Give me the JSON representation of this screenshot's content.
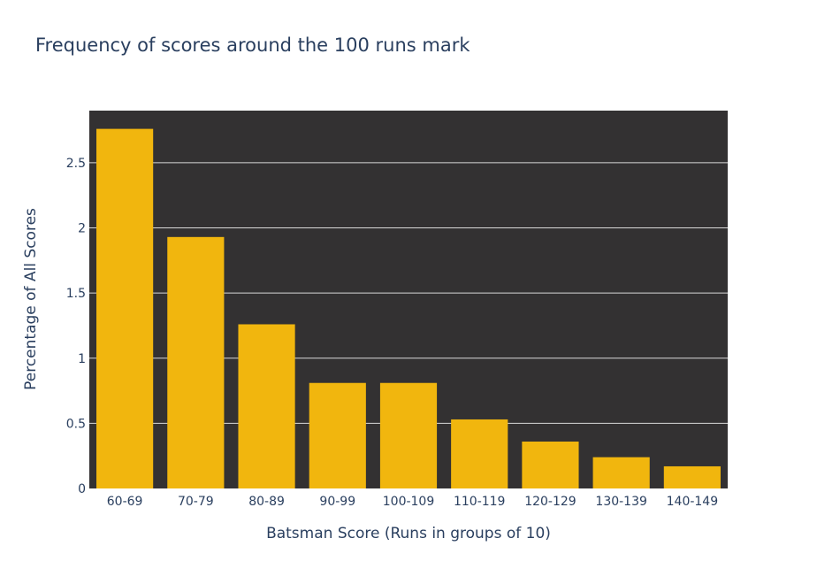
{
  "chart_data": {
    "type": "bar",
    "title": "Frequency of scores around the 100 runs mark",
    "xlabel": "Batsman Score (Runs in groups of 10)",
    "ylabel": "Percentage of All Scores",
    "categories": [
      "60-69",
      "70-79",
      "80-89",
      "90-99",
      "100-109",
      "110-119",
      "120-129",
      "130-139",
      "140-149"
    ],
    "values": [
      2.76,
      1.93,
      1.26,
      0.81,
      0.81,
      0.53,
      0.36,
      0.24,
      0.17
    ],
    "ylim": [
      0,
      2.9
    ],
    "yticks": [
      0,
      0.5,
      1,
      1.5,
      2,
      2.5
    ],
    "ytick_labels": [
      "0",
      "0.5",
      "1",
      "1.5",
      "2",
      "2.5"
    ],
    "grid": true,
    "colors": {
      "bar": "#f1b60e",
      "plot_background": "#333132",
      "gridline": "#d9d9d9",
      "text": "#2a3f5f"
    }
  }
}
